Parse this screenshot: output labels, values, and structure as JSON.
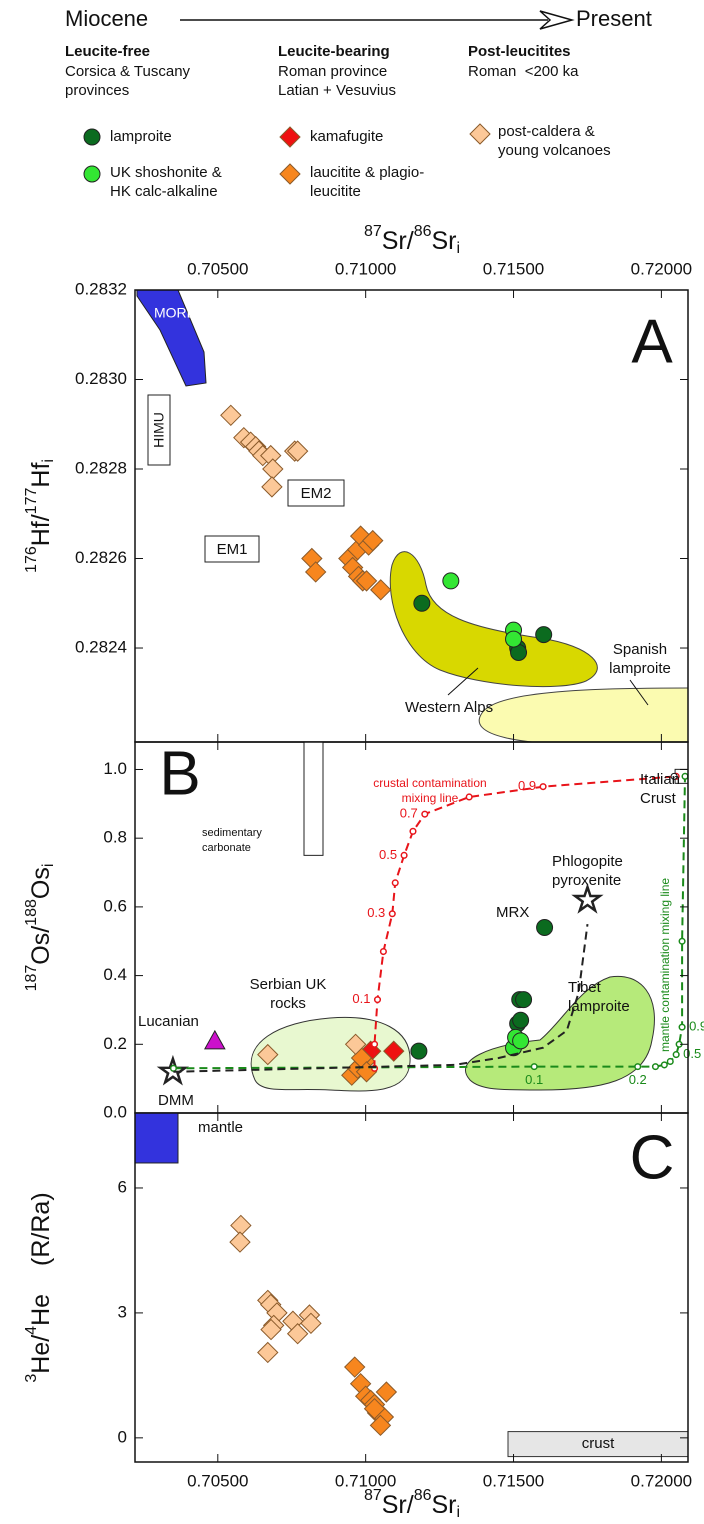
{
  "header": {
    "left": "Miocene",
    "right": "Present"
  },
  "legend_groups": [
    {
      "title": "Leucite-free",
      "subtitle": "Corsica & Tuscany provinces"
    },
    {
      "title": "Leucite-bearing",
      "subtitle": "Roman province Latian + Vesuvius"
    },
    {
      "title": "Post-leucitites",
      "subtitle": "Roman  <200 ka"
    }
  ],
  "chart_data": [
    {
      "type": "scatter",
      "panel_label": "A",
      "x_label_parts": [
        "87",
        "Sr/",
        "86",
        "Sr",
        "i"
      ],
      "y_label_parts": [
        "176",
        "Hf/",
        "177",
        "Hf",
        "i"
      ],
      "xlim": [
        0.7022,
        0.7209
      ],
      "xticks": [
        {
          "value": 0.705,
          "label": "0.70500"
        },
        {
          "value": 0.71,
          "label": "0.71000"
        },
        {
          "value": 0.715,
          "label": "0.71500"
        },
        {
          "value": 0.72,
          "label": "0.72000"
        }
      ],
      "ylim": [
        0.28219,
        0.2832
      ],
      "yticks": [
        0.2824,
        0.2826,
        0.2828,
        {
          "value": 0.283,
          "label": "0.2830"
        },
        0.2832
      ],
      "series": [
        {
          "color": "#0b6b1f",
          "marker": "circle",
          "x": [
            0.7119,
            0.71514,
            0.71517,
            0.71602
          ],
          "values": [
            0.2825,
            0.2824,
            0.28239,
            0.28243
          ]
        },
        {
          "color": "#33e633",
          "marker": "circle",
          "x": [
            0.71288,
            0.715,
            0.715
          ],
          "values": [
            0.28255,
            0.28244,
            0.28242
          ]
        },
        {
          "color": "#f7861e",
          "marker": "diamond",
          "x": [
            0.70818,
            0.70831,
            0.70943,
            0.70956,
            0.70973,
            0.70983,
            0.7101,
            0.71024,
            0.70976,
            0.7099,
            0.71003,
            0.71051
          ],
          "values": [
            0.2826,
            0.28257,
            0.2826,
            0.28258,
            0.28262,
            0.28265,
            0.28263,
            0.28264,
            0.28256,
            0.28255,
            0.28255,
            0.28253
          ]
        },
        {
          "color": "#fcc898",
          "marker": "diamond",
          "x": [
            0.70544,
            0.70588,
            0.70611,
            0.70628,
            0.70639,
            0.70652,
            0.70679,
            0.70686,
            0.70683,
            0.7076,
            0.7077
          ],
          "values": [
            0.28292,
            0.28287,
            0.28286,
            0.28285,
            0.28284,
            0.28283,
            0.28283,
            0.2828,
            0.28276,
            0.28284,
            0.28284
          ]
        }
      ],
      "annotations": [
        "MORB",
        "HIMU",
        "EM2",
        "EM1",
        "Western Alps",
        "Spanish lamproite"
      ]
    },
    {
      "type": "scatter",
      "panel_label": "B",
      "y_label_parts": [
        "187",
        "Os/",
        "188",
        "Os",
        "i"
      ],
      "xlim": [
        0.7022,
        0.7209
      ],
      "xticks": [
        0.705,
        0.71,
        0.715,
        0.72
      ],
      "ylim": [
        0,
        1.08
      ],
      "yticks": [
        {
          "value": 0,
          "label": "0.0"
        },
        0.2,
        0.4,
        0.6,
        0.8,
        {
          "value": 1,
          "label": "1.0"
        }
      ],
      "series": [
        {
          "name": "lamproite",
          "color": "#0b6b1f",
          "marker": "circle",
          "x": [
            0.7118,
            0.71514,
            0.71524,
            0.71521,
            0.71534,
            0.71605
          ],
          "values": [
            0.18,
            0.26,
            0.27,
            0.33,
            0.33,
            0.54
          ]
        },
        {
          "name": "UK shoshonite & HK calc-alkaline",
          "color": "#33e633",
          "marker": "circle",
          "x": [
            0.715,
            0.71507,
            0.71524
          ],
          "values": [
            0.19,
            0.22,
            0.21
          ]
        },
        {
          "name": "kamafugite",
          "color": "#ee1111",
          "marker": "diamond",
          "x": [
            0.71017,
            0.71095
          ],
          "values": [
            0.18,
            0.18
          ]
        },
        {
          "name": "laucitite & plagio-leucitite",
          "color": "#f7861e",
          "marker": "diamond",
          "x": [
            0.70953,
            0.70973,
            0.70997,
            0.70986,
            0.71003
          ],
          "values": [
            0.11,
            0.13,
            0.15,
            0.16,
            0.12
          ]
        },
        {
          "name": "post-caldera & young volcanoes",
          "color": "#fcc898",
          "marker": "diamond",
          "x": [
            0.70669,
            0.70966
          ],
          "values": [
            0.17,
            0.2
          ]
        },
        {
          "color": "#cc11cc",
          "marker": "triangle",
          "x": [
            0.7049
          ],
          "values": [
            0.21
          ]
        },
        {
          "color": "#222222",
          "marker": "star",
          "x": [
            0.70348
          ],
          "values": [
            0.12
          ]
        },
        {
          "color": "#222222",
          "marker": "star",
          "x": [
            0.7175
          ],
          "values": [
            0.62
          ]
        },
        {
          "color": "#ffffff",
          "marker": "square",
          "x": [
            0.7207
          ],
          "values": [
            0.98
          ]
        },
        {
          "color": "#e8141a",
          "marker": "line",
          "linestyle": "dashed",
          "x": [
            0.7103,
            0.7103,
            0.7104,
            0.7106,
            0.7109,
            0.711,
            0.7113,
            0.7116,
            0.712,
            0.7135,
            0.716,
            0.7205
          ],
          "values": [
            0.13,
            0.2,
            0.33,
            0.47,
            0.58,
            0.67,
            0.75,
            0.82,
            0.87,
            0.92,
            0.95,
            0.98
          ],
          "point_labels": [
            null,
            null,
            "0.1",
            null,
            "0.3",
            null,
            "0.5",
            null,
            "0.7",
            null,
            "0.9",
            null
          ]
        },
        {
          "color": "#1a8a1a",
          "marker": "line",
          "linestyle": "dashed",
          "x": [
            0.7035,
            0.7157,
            0.7192,
            0.7198,
            0.7201,
            0.7203,
            0.7205,
            0.7206,
            0.7207,
            0.7207,
            0.7208
          ],
          "values": [
            0.13,
            0.135,
            0.135,
            0.135,
            0.14,
            0.15,
            0.17,
            0.2,
            0.25,
            0.5,
            0.98
          ],
          "point_labels": [
            null,
            "0.1",
            "0.2",
            null,
            null,
            null,
            "0.5",
            null,
            "0.9",
            null,
            null
          ]
        },
        {
          "color": "#222222",
          "marker": "line",
          "linestyle": "dashed",
          "x": [
            0.7035,
            0.713,
            0.7145,
            0.716,
            0.7168,
            0.7172,
            0.7175
          ],
          "values": [
            0.12,
            0.14,
            0.16,
            0.19,
            0.24,
            0.35,
            0.55
          ]
        }
      ],
      "annotations": [
        "Italian Crust",
        "crustal contamination mixing line",
        "sedimentary carbonate",
        "Phlogopite pyroxenite",
        "MRX",
        "Serbian UK rocks",
        "Tibet lamproite",
        "Lucanian",
        "DMM",
        "mantle contamination mixing line"
      ]
    },
    {
      "type": "scatter",
      "panel_label": "C",
      "x_label_parts": [
        "87",
        "Sr/",
        "86",
        "Sr",
        "i"
      ],
      "y_label_parts": [
        "3",
        "He/",
        "4",
        "He",
        "(R/Ra)"
      ],
      "xlim": [
        0.7022,
        0.7209
      ],
      "xticks": [
        {
          "value": 0.705,
          "label": "0.70500"
        },
        {
          "value": 0.71,
          "label": "0.71000"
        },
        {
          "value": 0.715,
          "label": "0.71500"
        },
        {
          "value": 0.72,
          "label": "0.72000"
        }
      ],
      "ylim": [
        -0.58,
        7.8
      ],
      "yticks": [
        0,
        3,
        6
      ],
      "series": [
        {
          "color": "#f7861e",
          "marker": "diamond",
          "x": [
            0.70963,
            0.70983,
            0.71,
            0.71017,
            0.7103,
            0.7104,
            0.7106,
            0.7105,
            0.7107,
            0.7103
          ],
          "values": [
            1.7,
            1.3,
            1.0,
            0.9,
            0.8,
            0.6,
            0.5,
            0.3,
            1.1,
            0.7
          ]
        },
        {
          "color": "#fcc898",
          "marker": "diamond",
          "x": [
            0.70578,
            0.70575,
            0.70669,
            0.70679,
            0.707,
            0.70689,
            0.70669,
            0.70754,
            0.7077,
            0.7081,
            0.70815,
            0.7068
          ],
          "values": [
            5.1,
            4.7,
            3.3,
            3.2,
            3.0,
            2.7,
            2.05,
            2.8,
            2.5,
            2.95,
            2.75,
            2.6
          ]
        }
      ],
      "annotations": [
        "mantle",
        "crust"
      ]
    }
  ]
}
